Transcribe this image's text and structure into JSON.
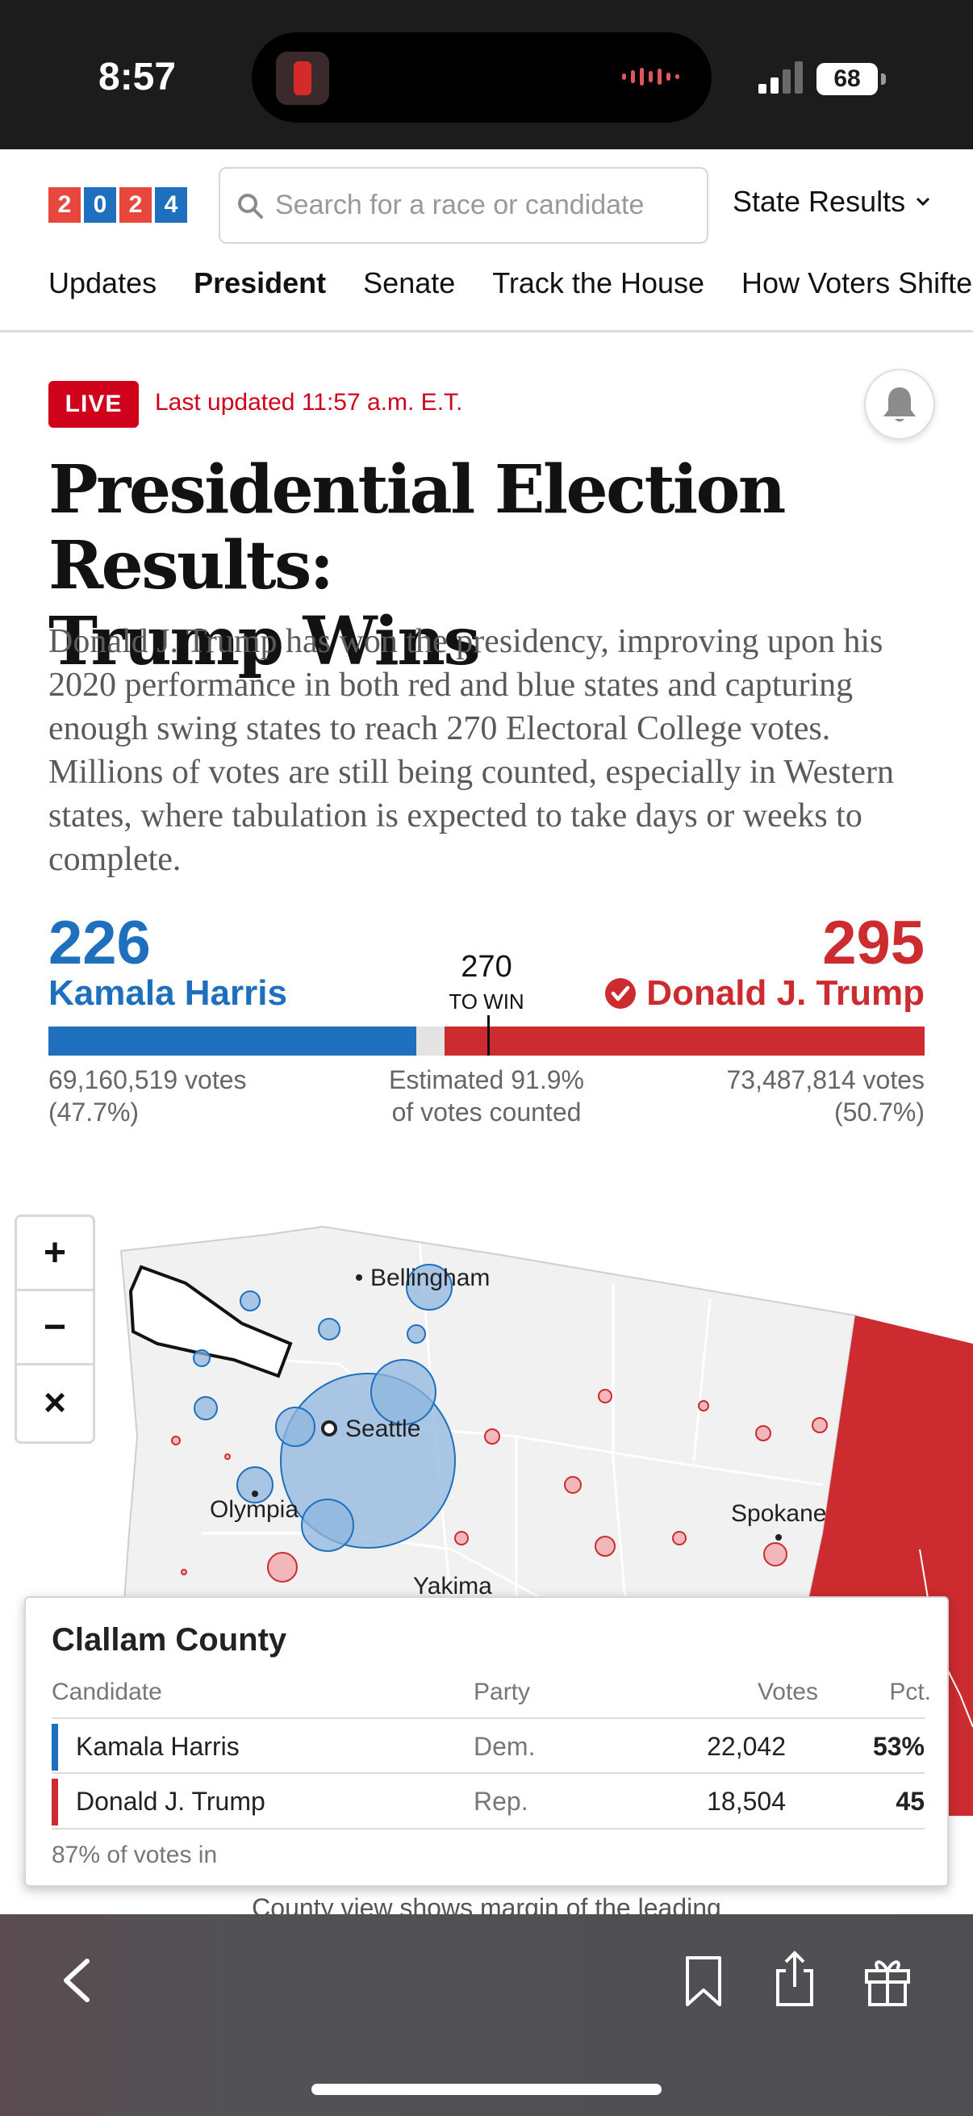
{
  "status": {
    "time": "8:57",
    "battery": "68"
  },
  "header": {
    "logo_digits": [
      "2",
      "0",
      "2",
      "4"
    ],
    "logo_colors": [
      "#e8473d",
      "#1f6fbf",
      "#e8473d",
      "#1f6fbf"
    ],
    "search_placeholder": "Search for a race or candidate",
    "state_results_label": "State Results",
    "icons": {
      "search": "search-icon",
      "dropdown": "chevron-down-icon"
    }
  },
  "nav": {
    "tabs": [
      {
        "label": "Updates",
        "active": false
      },
      {
        "label": "President",
        "active": true
      },
      {
        "label": "Senate",
        "active": false
      },
      {
        "label": "Track the House",
        "active": false
      },
      {
        "label": "How Voters Shifted",
        "active": false
      }
    ]
  },
  "live": {
    "badge": "LIVE",
    "updated": "Last updated 11:57 a.m. E.T.",
    "icon": "bell-icon"
  },
  "article": {
    "headline_line1": "Presidential Election Results:",
    "headline_line2": "Trump Wins",
    "summary": "Donald J. Trump has won the presidency, improving upon his 2020 performance in both red and blue states and capturing enough swing states to reach 270 Electoral College votes. Millions of votes are still being counted, especially in Western states, where tabulation is expected to take days or weeks to complete."
  },
  "tally": {
    "harris": {
      "ev": "226",
      "name": "Kamala Harris",
      "votes": "69,160,519 votes",
      "pct": "(47.7%)"
    },
    "trump": {
      "ev": "295",
      "name": "Donald J. Trump",
      "votes": "73,487,814 votes",
      "pct": "(50.7%)"
    },
    "to_win_number": "270",
    "to_win_label": "TO WIN",
    "counted_line1": "Estimated 91.9%",
    "counted_line2": "of votes counted",
    "total_ev": 538,
    "dem_ev_value": 226,
    "rep_ev_value": 295,
    "win_threshold": 270,
    "colors": {
      "dem": "#1f6fbf",
      "rep": "#cc2c2f"
    }
  },
  "map": {
    "cities": [
      "Bellingham",
      "Seattle",
      "Olympia",
      "Spokane",
      "Yakima"
    ],
    "zoom_controls": [
      "+",
      "−",
      "×"
    ]
  },
  "county_card": {
    "title": "Clallam County",
    "headers": {
      "candidate": "Candidate",
      "party": "Party",
      "votes": "Votes",
      "pct": "Pct."
    },
    "rows": [
      {
        "candidate": "Kamala Harris",
        "party": "Dem.",
        "votes": "22,042",
        "pct": "53%",
        "color": "#1f6fbf"
      },
      {
        "candidate": "Donald J. Trump",
        "party": "Rep.",
        "votes": "18,504",
        "pct": "45",
        "color": "#cc2c2f"
      }
    ],
    "footer": "87% of votes in"
  },
  "below_card_text": "County view shows margin of the leading",
  "toolbar": {
    "icons": [
      "back-icon",
      "bookmark-icon",
      "share-icon",
      "gift-icon"
    ]
  }
}
